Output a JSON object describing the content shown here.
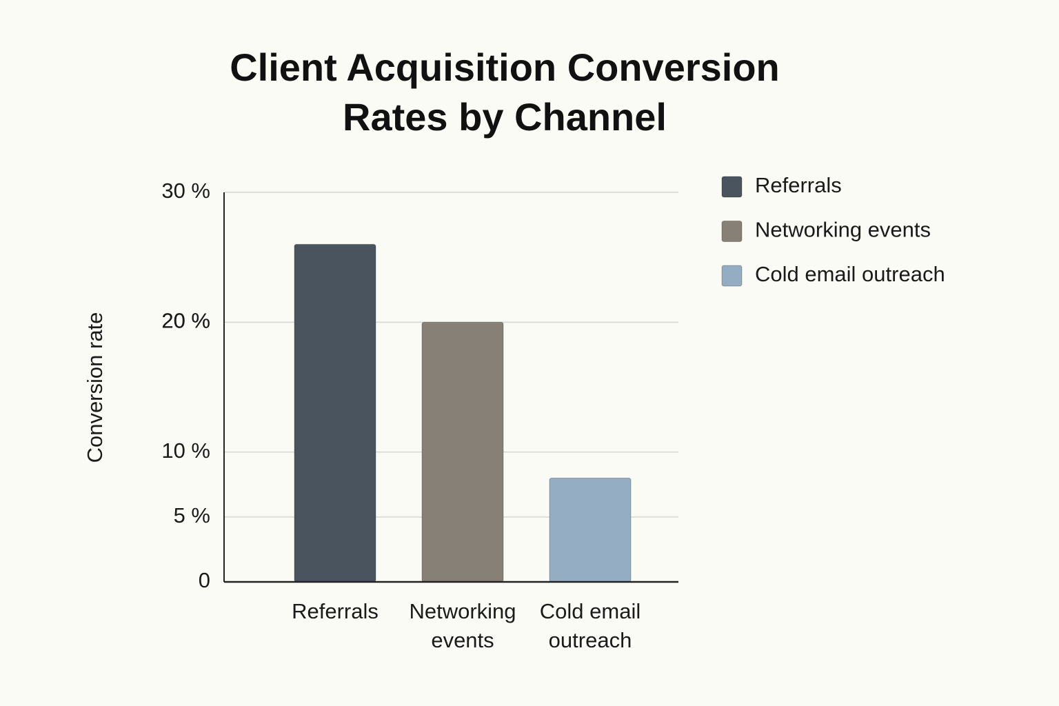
{
  "chart_data": {
    "type": "bar",
    "title": "Client Acquisition Conversion Rates by Channel",
    "y_label": "Conversion rate",
    "categories": [
      "Referrals",
      "Networking events",
      "Cold email outreach"
    ],
    "values": [
      26,
      20,
      8
    ],
    "colors": [
      "#49545f",
      "#878076",
      "#94adc3"
    ],
    "ylim": [
      0,
      30
    ],
    "yticks": [
      0,
      {
        "value": 5,
        "label": "5 %"
      },
      {
        "value": 10,
        "label": "10 %"
      },
      {
        "value": 20,
        "label": "20 %"
      },
      {
        "value": 20,
        "label": "20 %"
      },
      {
        "value": 30,
        "label": "30 %"
      }
    ],
    "grid": true,
    "legend": "right"
  }
}
